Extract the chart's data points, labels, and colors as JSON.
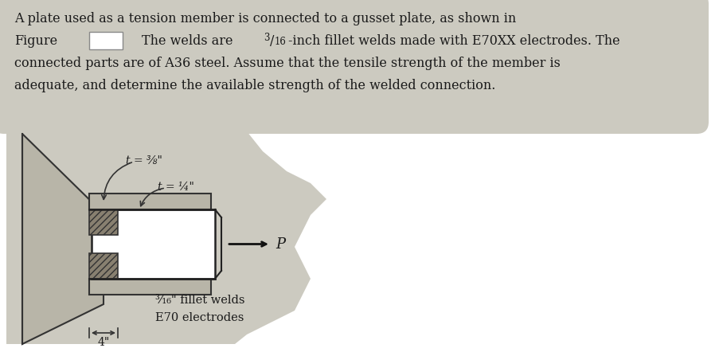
{
  "bg_color": "#ffffff",
  "blob_color": "#cccac0",
  "text_color": "#1a1a1a",
  "line1": "A plate used as a tension member is connected to a gusset plate, as shown in",
  "line2a": "Figure",
  "line2b": "The welds are ",
  "line2c": "/16-inch fillet welds made with E70XX electrodes. The",
  "line3": "connected parts are of A36 steel. Assume that the tensile strength of the member is",
  "line4": "adequate, and determine the available strength of the welded connection.",
  "label_t38": "t = ⅜\"",
  "label_t14": "t = ¼\"",
  "label_fillet": "³⁄₁₆\" fillet welds",
  "label_electrode": "E70 electrodes",
  "label_P": "P",
  "label_4in": "4\"",
  "gusset_color": "#b8b5a8",
  "plate_color": "#f0ede6",
  "hatch_color": "#888070",
  "weld_color": "#c0bdb0"
}
